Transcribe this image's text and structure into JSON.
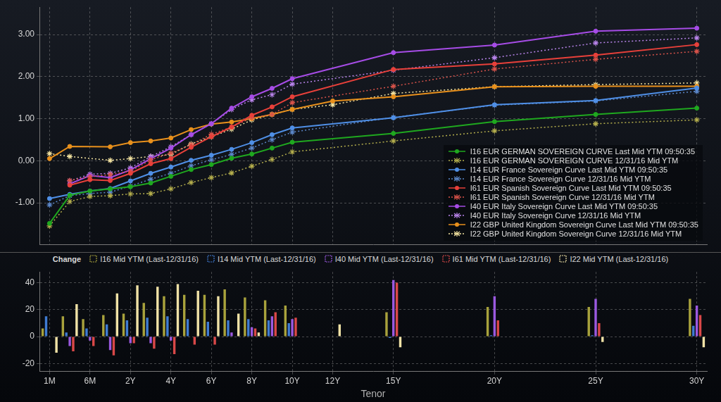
{
  "chart_data": [
    {
      "type": "line",
      "categories": [
        "1M",
        null,
        "6M",
        null,
        "2Y",
        null,
        "4Y",
        null,
        "6Y",
        null,
        "8Y",
        null,
        "10Y",
        null,
        "12Y",
        null,
        null,
        "15Y",
        null,
        null,
        null,
        null,
        "20Y",
        null,
        null,
        null,
        null,
        "25Y",
        null,
        null,
        null,
        null,
        "30Y"
      ],
      "ylim": [
        -2,
        3.65
      ],
      "yticks": [
        {
          "value": -1,
          "label": "-1.00"
        },
        {
          "value": 0,
          "label": "0.00"
        },
        {
          "value": 1,
          "label": "1.00"
        },
        {
          "value": 2,
          "label": "2.00"
        },
        {
          "value": 3,
          "label": "3.00"
        }
      ],
      "grid": true,
      "legend": "lower right",
      "tick_labels": "y",
      "series": [
        {
          "name": "I16 EUR GERMAN SOVEREIGN CURVE Last Mid YTM 09:50:35",
          "color": "#1fa81f",
          "marker": "circle",
          "line_style": "solid",
          "values": [
            -1.49,
            -0.82,
            -0.72,
            -0.67,
            -0.62,
            -0.53,
            -0.37,
            -0.21,
            -0.09,
            0.06,
            0.16,
            0.3,
            0.44,
            null,
            null,
            null,
            null,
            0.65,
            null,
            null,
            null,
            null,
            0.93,
            null,
            null,
            null,
            null,
            1.1,
            null,
            null,
            null,
            null,
            1.25
          ]
        },
        {
          "name": "I16 EUR GERMAN SOVEREIGN CURVE 12/31/16 Mid YTM",
          "color": "#b3ad4c",
          "marker": "star",
          "line_style": "dotted",
          "values": [
            -1.55,
            -0.97,
            -0.85,
            -0.83,
            -0.79,
            -0.78,
            -0.67,
            -0.52,
            -0.4,
            -0.29,
            -0.13,
            0.03,
            0.21,
            null,
            null,
            null,
            null,
            0.47,
            null,
            null,
            null,
            null,
            0.71,
            null,
            null,
            null,
            null,
            0.88,
            null,
            null,
            null,
            null,
            0.97
          ]
        },
        {
          "name": "I14 EUR France Sovereign Curve Last Mid YTM 09:50:35",
          "color": "#4f8fe6",
          "marker": "circle",
          "line_style": "solid",
          "values": [
            -0.9,
            -0.8,
            -0.72,
            -0.66,
            -0.48,
            -0.3,
            -0.15,
            0.01,
            0.13,
            0.27,
            0.43,
            0.62,
            0.78,
            null,
            null,
            null,
            null,
            1.02,
            null,
            null,
            null,
            null,
            1.33,
            null,
            null,
            null,
            null,
            1.43,
            null,
            null,
            null,
            null,
            1.73
          ]
        },
        {
          "name": "I14 EUR France Sovereign Curve 12/31/16 Mid YTM",
          "color": "#5b86c8",
          "marker": "star",
          "line_style": "dotted",
          "values": [
            -1.05,
            -0.83,
            -0.78,
            -0.75,
            -0.6,
            -0.44,
            -0.3,
            -0.12,
            0.02,
            0.15,
            0.3,
            0.5,
            0.68,
            null,
            null,
            null,
            null,
            1.03,
            null,
            null,
            null,
            null,
            1.32,
            null,
            null,
            null,
            null,
            1.42,
            null,
            null,
            null,
            null,
            1.65
          ]
        },
        {
          "name": "I61 EUR Spanish Sovereign Curve Last Mid YTM 09:50:35",
          "color": "#e8403a",
          "marker": "circle",
          "line_style": "solid",
          "values": [
            null,
            -0.58,
            -0.45,
            -0.47,
            -0.3,
            -0.07,
            0.05,
            0.32,
            0.57,
            0.8,
            1.08,
            1.28,
            1.52,
            null,
            null,
            null,
            null,
            2.17,
            null,
            null,
            null,
            null,
            2.3,
            null,
            null,
            null,
            null,
            2.51,
            null,
            null,
            null,
            null,
            2.76
          ]
        },
        {
          "name": "I61 EUR Spanish Sovereign Curve 12/31/16 Mid YTM",
          "color": "#d9534a",
          "marker": "star",
          "line_style": "dotted",
          "values": [
            null,
            -0.47,
            -0.38,
            -0.33,
            -0.25,
            0.02,
            0.18,
            0.38,
            0.63,
            0.8,
            1.02,
            1.1,
            1.38,
            null,
            null,
            null,
            null,
            1.77,
            null,
            null,
            null,
            null,
            2.18,
            null,
            null,
            null,
            null,
            2.41,
            null,
            null,
            null,
            null,
            2.6
          ]
        },
        {
          "name": "I40 EUR Italy Sovereign Curve Last Mid YTM 09:50:35",
          "color": "#a64ce6",
          "marker": "circle",
          "line_style": "solid",
          "values": [
            null,
            -0.55,
            -0.35,
            -0.4,
            -0.22,
            0.05,
            0.3,
            0.62,
            0.88,
            1.25,
            1.52,
            1.72,
            1.95,
            null,
            null,
            null,
            null,
            2.57,
            null,
            null,
            null,
            null,
            2.75,
            null,
            null,
            null,
            null,
            3.08,
            null,
            null,
            null,
            null,
            3.15
          ]
        },
        {
          "name": "I40 EUR Italy Sovereign Curve 12/31/16 Mid YTM",
          "color": "#b884ea",
          "marker": "star",
          "line_style": "dotted",
          "values": [
            null,
            -0.48,
            -0.32,
            -0.3,
            -0.17,
            0.1,
            0.33,
            0.62,
            0.88,
            1.22,
            1.45,
            1.57,
            1.82,
            null,
            null,
            null,
            null,
            2.15,
            null,
            null,
            null,
            null,
            2.45,
            null,
            null,
            null,
            null,
            2.8,
            null,
            null,
            null,
            null,
            2.92
          ]
        },
        {
          "name": "I22 GBP United Kingdom Sovereign Curve Last Mid YTM 09:50:35",
          "color": "#e8901c",
          "marker": "circle",
          "line_style": "solid",
          "values": [
            0.05,
            0.34,
            null,
            0.33,
            0.43,
            0.47,
            0.54,
            0.74,
            0.87,
            0.92,
            1.0,
            1.1,
            1.22,
            null,
            1.42,
            null,
            null,
            1.52,
            null,
            null,
            null,
            null,
            1.76,
            null,
            null,
            null,
            null,
            1.77,
            null,
            null,
            null,
            null,
            1.77
          ]
        },
        {
          "name": "I22 GBP United Kingdom Sovereign Curve 12/31/16 Mid YTM",
          "color": "#f2e2a0",
          "marker": "star",
          "line_style": "dotted",
          "values": [
            0.17,
            0.1,
            null,
            0.01,
            0.05,
            0.1,
            0.15,
            0.4,
            0.57,
            0.75,
            0.97,
            1.1,
            1.22,
            null,
            1.33,
            null,
            null,
            1.6,
            null,
            null,
            null,
            null,
            1.76,
            null,
            null,
            null,
            null,
            1.81,
            null,
            null,
            null,
            null,
            1.85
          ]
        }
      ]
    },
    {
      "type": "bar",
      "xlabel": "Tenor",
      "categories": [
        "1M",
        null,
        "6M",
        null,
        "2Y",
        null,
        "4Y",
        null,
        "6Y",
        null,
        "8Y",
        null,
        "10Y",
        null,
        "12Y",
        null,
        null,
        "15Y",
        null,
        null,
        null,
        null,
        "20Y",
        null,
        null,
        null,
        null,
        "25Y",
        null,
        null,
        null,
        null,
        "30Y"
      ],
      "ylim": [
        -26,
        48
      ],
      "yticks": [
        -20,
        0,
        20,
        40
      ],
      "grid": true,
      "legend": "top",
      "legend_title": "Change",
      "series": [
        {
          "name": "I16 Mid YTM (Last-12/31/16)",
          "color": "#a8a23c",
          "values": [
            6,
            15,
            13,
            16,
            17,
            25,
            30,
            31,
            31,
            35,
            29,
            27,
            23,
            null,
            null,
            null,
            null,
            18,
            null,
            null,
            null,
            null,
            22,
            null,
            null,
            null,
            null,
            22,
            null,
            null,
            null,
            null,
            28
          ]
        },
        {
          "name": "I14 Mid YTM (Last-12/31/16)",
          "color": "#3f7bd1",
          "values": [
            15,
            3,
            6,
            9,
            12,
            14,
            15,
            13,
            11,
            12,
            13,
            12,
            10,
            null,
            null,
            null,
            null,
            -1,
            null,
            null,
            null,
            null,
            1,
            null,
            null,
            null,
            null,
            1,
            null,
            null,
            null,
            null,
            8
          ]
        },
        {
          "name": "I40 Mid YTM (Last-12/31/16)",
          "color": "#9b59e0",
          "values": [
            null,
            -7,
            -3,
            -10,
            -5,
            -5,
            -3,
            0,
            0,
            3,
            7,
            15,
            13,
            null,
            null,
            null,
            null,
            42,
            null,
            null,
            null,
            null,
            30,
            null,
            null,
            null,
            null,
            28,
            null,
            null,
            null,
            null,
            23
          ]
        },
        {
          "name": "I61 Mid YTM (Last-12/31/16)",
          "color": "#d94848",
          "values": [
            null,
            -11,
            -7,
            -14,
            -5,
            -9,
            -13,
            -6,
            -6,
            0,
            6,
            18,
            14,
            null,
            null,
            null,
            null,
            40,
            null,
            null,
            null,
            null,
            12,
            null,
            null,
            null,
            null,
            10,
            null,
            null,
            null,
            null,
            16
          ]
        },
        {
          "name": "I22 Mid YTM (Last-12/31/16)",
          "color": "#f0e2a6",
          "values": [
            -12,
            24,
            null,
            32,
            38,
            37,
            39,
            34,
            30,
            17,
            3,
            0,
            0,
            null,
            9,
            null,
            null,
            -8,
            null,
            null,
            null,
            null,
            0,
            null,
            null,
            null,
            null,
            -4,
            null,
            null,
            null,
            null,
            -8
          ]
        }
      ]
    }
  ]
}
